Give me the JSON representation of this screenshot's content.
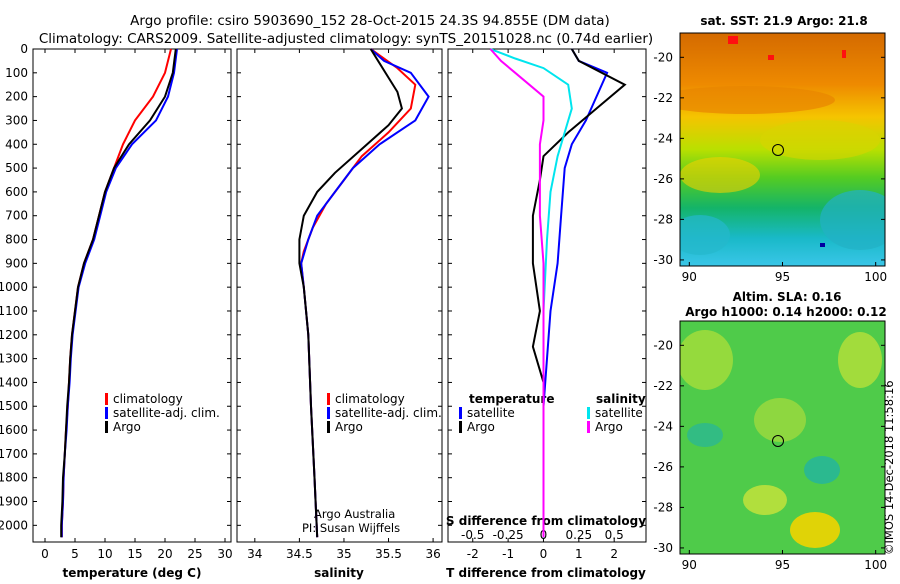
{
  "header": {
    "line1": "Argo profile: csiro 5903690_152 28-Oct-2015 24.3S 94.855E (DM data)",
    "line2": "Climatology: CARS2009. Satellite-adjusted climatology: synTS_20151028.nc (0.74d earlier)"
  },
  "colors": {
    "climatology": "#ff0000",
    "satellite": "#0000ff",
    "argo": "#000000",
    "sal_satellite": "#00e5ee",
    "sal_argo": "#ff00ff"
  },
  "chart_data": [
    {
      "type": "line",
      "name": "temperature-profile",
      "xlabel": "temperature (deg C)",
      "xlim": [
        -2,
        31
      ],
      "ylim": [
        2070,
        0
      ],
      "xticks": [
        0,
        5,
        10,
        15,
        20,
        25,
        30
      ],
      "yticks": [
        0,
        100,
        200,
        300,
        400,
        500,
        600,
        700,
        800,
        900,
        1000,
        1100,
        1200,
        1300,
        1400,
        1500,
        1600,
        1700,
        1800,
        1900,
        2000
      ],
      "legend": [
        "climatology",
        "satellite-adj. clim.",
        "Argo"
      ],
      "series": [
        {
          "name": "climatology",
          "color": "#ff0000",
          "points": [
            [
              21,
              0
            ],
            [
              20,
              100
            ],
            [
              18,
              200
            ],
            [
              15,
              300
            ],
            [
              13,
              400
            ],
            [
              11.5,
              500
            ],
            [
              10,
              600
            ],
            [
              9,
              700
            ],
            [
              8,
              800
            ],
            [
              6.5,
              900
            ],
            [
              5.5,
              1000
            ],
            [
              5,
              1100
            ],
            [
              4.5,
              1200
            ],
            [
              4.2,
              1300
            ],
            [
              4,
              1400
            ],
            [
              3.8,
              1500
            ],
            [
              3.5,
              1600
            ],
            [
              3.3,
              1700
            ],
            [
              3.1,
              1800
            ],
            [
              3,
              1900
            ],
            [
              2.8,
              2000
            ],
            [
              2.8,
              2050
            ]
          ]
        },
        {
          "name": "satellite-adj. clim.",
          "color": "#0000ff",
          "points": [
            [
              22,
              0
            ],
            [
              21.5,
              100
            ],
            [
              20.5,
              200
            ],
            [
              18.5,
              300
            ],
            [
              14.5,
              400
            ],
            [
              11.8,
              500
            ],
            [
              10.2,
              600
            ],
            [
              9.2,
              700
            ],
            [
              8.2,
              800
            ],
            [
              6.7,
              900
            ],
            [
              5.6,
              1000
            ],
            [
              5.1,
              1100
            ],
            [
              4.6,
              1200
            ],
            [
              4.3,
              1300
            ],
            [
              4.1,
              1400
            ],
            [
              3.8,
              1500
            ],
            [
              3.6,
              1600
            ],
            [
              3.3,
              1700
            ],
            [
              3.1,
              1800
            ],
            [
              3,
              1900
            ],
            [
              2.8,
              2000
            ],
            [
              2.8,
              2050
            ]
          ]
        },
        {
          "name": "Argo",
          "color": "#000000",
          "points": [
            [
              21.8,
              0
            ],
            [
              21.3,
              100
            ],
            [
              20,
              200
            ],
            [
              17.5,
              300
            ],
            [
              14,
              400
            ],
            [
              11.5,
              500
            ],
            [
              10,
              600
            ],
            [
              9,
              700
            ],
            [
              8,
              800
            ],
            [
              6.5,
              900
            ],
            [
              5.5,
              1000
            ],
            [
              5,
              1100
            ],
            [
              4.5,
              1200
            ],
            [
              4.2,
              1300
            ],
            [
              4,
              1400
            ],
            [
              3.7,
              1500
            ],
            [
              3.5,
              1600
            ],
            [
              3.3,
              1700
            ],
            [
              3,
              1800
            ],
            [
              2.9,
              1900
            ],
            [
              2.7,
              2000
            ],
            [
              2.7,
              2050
            ]
          ]
        }
      ]
    },
    {
      "type": "line",
      "name": "salinity-profile",
      "xlabel": "salinity",
      "xlim": [
        33.8,
        36.1
      ],
      "ylim": [
        2070,
        0
      ],
      "xticks": [
        34,
        34.5,
        35,
        35.5,
        36
      ],
      "legend": [
        "climatology",
        "satellite-adj. clim.",
        "Argo"
      ],
      "series": [
        {
          "name": "climatology",
          "color": "#ff0000",
          "points": [
            [
              35.3,
              0
            ],
            [
              35.6,
              80
            ],
            [
              35.8,
              150
            ],
            [
              35.75,
              250
            ],
            [
              35.5,
              350
            ],
            [
              35.2,
              450
            ],
            [
              35,
              550
            ],
            [
              34.8,
              650
            ],
            [
              34.65,
              750
            ],
            [
              34.55,
              850
            ],
            [
              34.52,
              900
            ],
            [
              34.55,
              1000
            ],
            [
              34.6,
              1200
            ],
            [
              34.63,
              1500
            ],
            [
              34.67,
              1800
            ],
            [
              34.7,
              2050
            ]
          ]
        },
        {
          "name": "satellite-adj. clim.",
          "color": "#0000ff",
          "points": [
            [
              35.3,
              0
            ],
            [
              35.45,
              50
            ],
            [
              35.75,
              100
            ],
            [
              35.95,
              200
            ],
            [
              35.8,
              300
            ],
            [
              35.4,
              400
            ],
            [
              35.1,
              500
            ],
            [
              34.9,
              600
            ],
            [
              34.7,
              700
            ],
            [
              34.6,
              800
            ],
            [
              34.52,
              900
            ],
            [
              34.55,
              1000
            ],
            [
              34.6,
              1200
            ],
            [
              34.63,
              1500
            ],
            [
              34.67,
              1800
            ],
            [
              34.7,
              2050
            ]
          ]
        },
        {
          "name": "Argo",
          "color": "#000000",
          "points": [
            [
              35.3,
              0
            ],
            [
              35.4,
              60
            ],
            [
              35.5,
              120
            ],
            [
              35.6,
              180
            ],
            [
              35.65,
              250
            ],
            [
              35.5,
              320
            ],
            [
              35.2,
              420
            ],
            [
              34.9,
              520
            ],
            [
              34.7,
              600
            ],
            [
              34.55,
              700
            ],
            [
              34.5,
              800
            ],
            [
              34.5,
              900
            ],
            [
              34.55,
              1000
            ],
            [
              34.6,
              1200
            ],
            [
              34.63,
              1500
            ],
            [
              34.67,
              1800
            ],
            [
              34.7,
              2050
            ]
          ]
        }
      ],
      "annotations": [
        "Argo Australia",
        "PI: Susan Wijffels"
      ]
    },
    {
      "type": "line",
      "name": "difference-profile",
      "xlabel": "T difference from climatology",
      "top_xlabel": "S difference from climatology",
      "xlim": [
        -2.7,
        2.9
      ],
      "ylim": [
        2070,
        0
      ],
      "xticks": [
        -2,
        -1,
        0,
        1,
        2
      ],
      "top_xticks": [
        "-0.5",
        "-0.25",
        "0",
        "0.25",
        "0.5"
      ],
      "legend_left_title": "temperature",
      "legend_right_title": "salinity",
      "legend_left": [
        "satellite",
        "Argo"
      ],
      "legend_right": [
        "satellite",
        "Argo"
      ],
      "series": [
        {
          "name": "T satellite",
          "color": "#0000ff",
          "points": [
            [
              0.8,
              0
            ],
            [
              1,
              50
            ],
            [
              1.8,
              100
            ],
            [
              1.5,
              200
            ],
            [
              1.2,
              300
            ],
            [
              0.8,
              400
            ],
            [
              0.6,
              500
            ],
            [
              0.5,
              700
            ],
            [
              0.4,
              900
            ],
            [
              0.2,
              1100
            ],
            [
              0.1,
              1300
            ],
            [
              0,
              1500
            ],
            [
              0,
              2050
            ]
          ]
        },
        {
          "name": "T Argo",
          "color": "#000000",
          "points": [
            [
              0.8,
              0
            ],
            [
              1,
              50
            ],
            [
              2.3,
              150
            ],
            [
              1.5,
              250
            ],
            [
              0.7,
              350
            ],
            [
              0,
              450
            ],
            [
              -0.1,
              550
            ],
            [
              -0.3,
              700
            ],
            [
              -0.3,
              900
            ],
            [
              -0.1,
              1100
            ],
            [
              -0.3,
              1250
            ],
            [
              0,
              1400
            ],
            [
              0,
              2050
            ]
          ]
        },
        {
          "name": "S satellite",
          "color": "#00e5ee",
          "points": [
            [
              -1.5,
              0
            ],
            [
              -0.8,
              40
            ],
            [
              0,
              80
            ],
            [
              0.7,
              150
            ],
            [
              0.8,
              250
            ],
            [
              0.6,
              350
            ],
            [
              0.4,
              450
            ],
            [
              0.2,
              600
            ],
            [
              0.1,
              800
            ],
            [
              0,
              1100
            ],
            [
              0,
              2050
            ]
          ]
        },
        {
          "name": "S Argo",
          "color": "#ff00ff",
          "points": [
            [
              -1.5,
              0
            ],
            [
              -1.2,
              50
            ],
            [
              -0.8,
              100
            ],
            [
              0,
              200
            ],
            [
              0,
              300
            ],
            [
              -0.1,
              400
            ],
            [
              -0.1,
              500
            ],
            [
              -0.1,
              700
            ],
            [
              0,
              900
            ],
            [
              0,
              1200
            ],
            [
              0,
              2050
            ]
          ]
        }
      ]
    }
  ],
  "maps": {
    "sst": {
      "title": "sat. SST: 21.9 Argo: 21.8",
      "yticks": [
        "-20",
        "-22",
        "-24",
        "-26",
        "-28",
        "-30"
      ],
      "xticks": [
        "90",
        "95",
        "100"
      ]
    },
    "sla": {
      "title1": "Altim. SLA: 0.16",
      "title2": "Argo h1000: 0.14 h2000: 0.12",
      "yticks": [
        "-20",
        "-22",
        "-24",
        "-26",
        "-28",
        "-30"
      ],
      "xticks": [
        "90",
        "95",
        "100"
      ]
    }
  },
  "footer": {
    "credit": "©IMOS 14-Dec-2018 11:58:16"
  }
}
